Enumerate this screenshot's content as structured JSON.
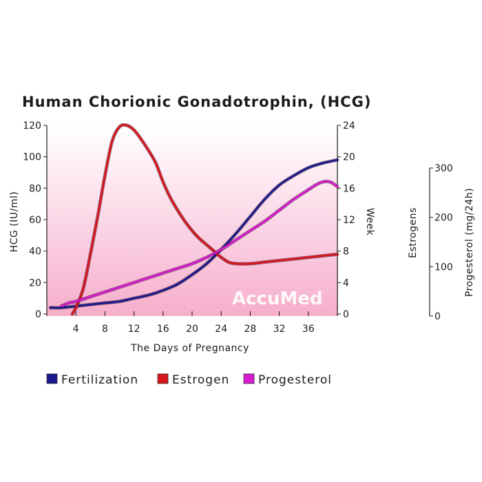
{
  "chart_data": {
    "type": "line",
    "title": "Human Chorionic Gonadotrophin, (HCG)",
    "xlabel": "The Days of Pregnancy",
    "ylabel": "HCG (IU/ml)",
    "y2label": "Week",
    "y3labels": [
      "Estrogens",
      "Progesterol (mg/24h)"
    ],
    "x_ticks": [
      4,
      8,
      12,
      16,
      20,
      24,
      28,
      32,
      36
    ],
    "xlim": [
      0,
      40
    ],
    "y_ticks": [
      0,
      20,
      40,
      60,
      80,
      100,
      120
    ],
    "ylim": [
      0,
      120
    ],
    "y2_ticks": [
      0,
      4,
      8,
      12,
      16,
      20,
      24
    ],
    "y2lim": [
      0,
      24
    ],
    "y3_ticks": [
      0,
      100,
      200,
      300
    ],
    "y3lim": [
      0,
      300
    ],
    "legend_position": "bottom",
    "grid": false,
    "background": "pink gradient",
    "watermark": "AccuMed",
    "series": [
      {
        "name": "Fertilization",
        "color": "#1a1a8c",
        "x": [
          0.5,
          2,
          4,
          6,
          8,
          10,
          12,
          14,
          16,
          18,
          20,
          22,
          24,
          26,
          28,
          30,
          32,
          34,
          36,
          38,
          40
        ],
        "y": [
          4,
          4,
          5,
          6,
          7,
          8,
          10,
          12,
          15,
          19,
          25,
          32,
          41,
          51,
          62,
          73,
          82,
          88,
          93,
          96,
          98
        ]
      },
      {
        "name": "Estrogen",
        "color": "#d8161b",
        "x": [
          3.5,
          4,
          5,
          6,
          7,
          8,
          9,
          10,
          11,
          12,
          13,
          14,
          15,
          16,
          17,
          18,
          19,
          20,
          21,
          22,
          23,
          24,
          25,
          26,
          28,
          30,
          32,
          34,
          36,
          38,
          40
        ],
        "y": [
          0,
          4,
          16,
          38,
          62,
          88,
          110,
          119,
          120,
          117,
          111,
          104,
          96,
          84,
          74,
          66,
          59,
          53,
          48,
          44,
          40,
          36,
          33,
          32,
          32,
          33,
          34,
          35,
          36,
          37,
          38
        ]
      },
      {
        "name": "Progesterol",
        "color": "#d81bd0",
        "x": [
          2,
          3,
          4,
          6,
          8,
          10,
          12,
          14,
          16,
          18,
          20,
          22,
          24,
          26,
          28,
          30,
          32,
          34,
          36,
          37,
          38,
          39,
          40
        ],
        "y": [
          5,
          7,
          8,
          11,
          14,
          17,
          20,
          23,
          26,
          29,
          32,
          36,
          41,
          47,
          53,
          59,
          66,
          73,
          79,
          82,
          84,
          84,
          81
        ]
      }
    ]
  }
}
